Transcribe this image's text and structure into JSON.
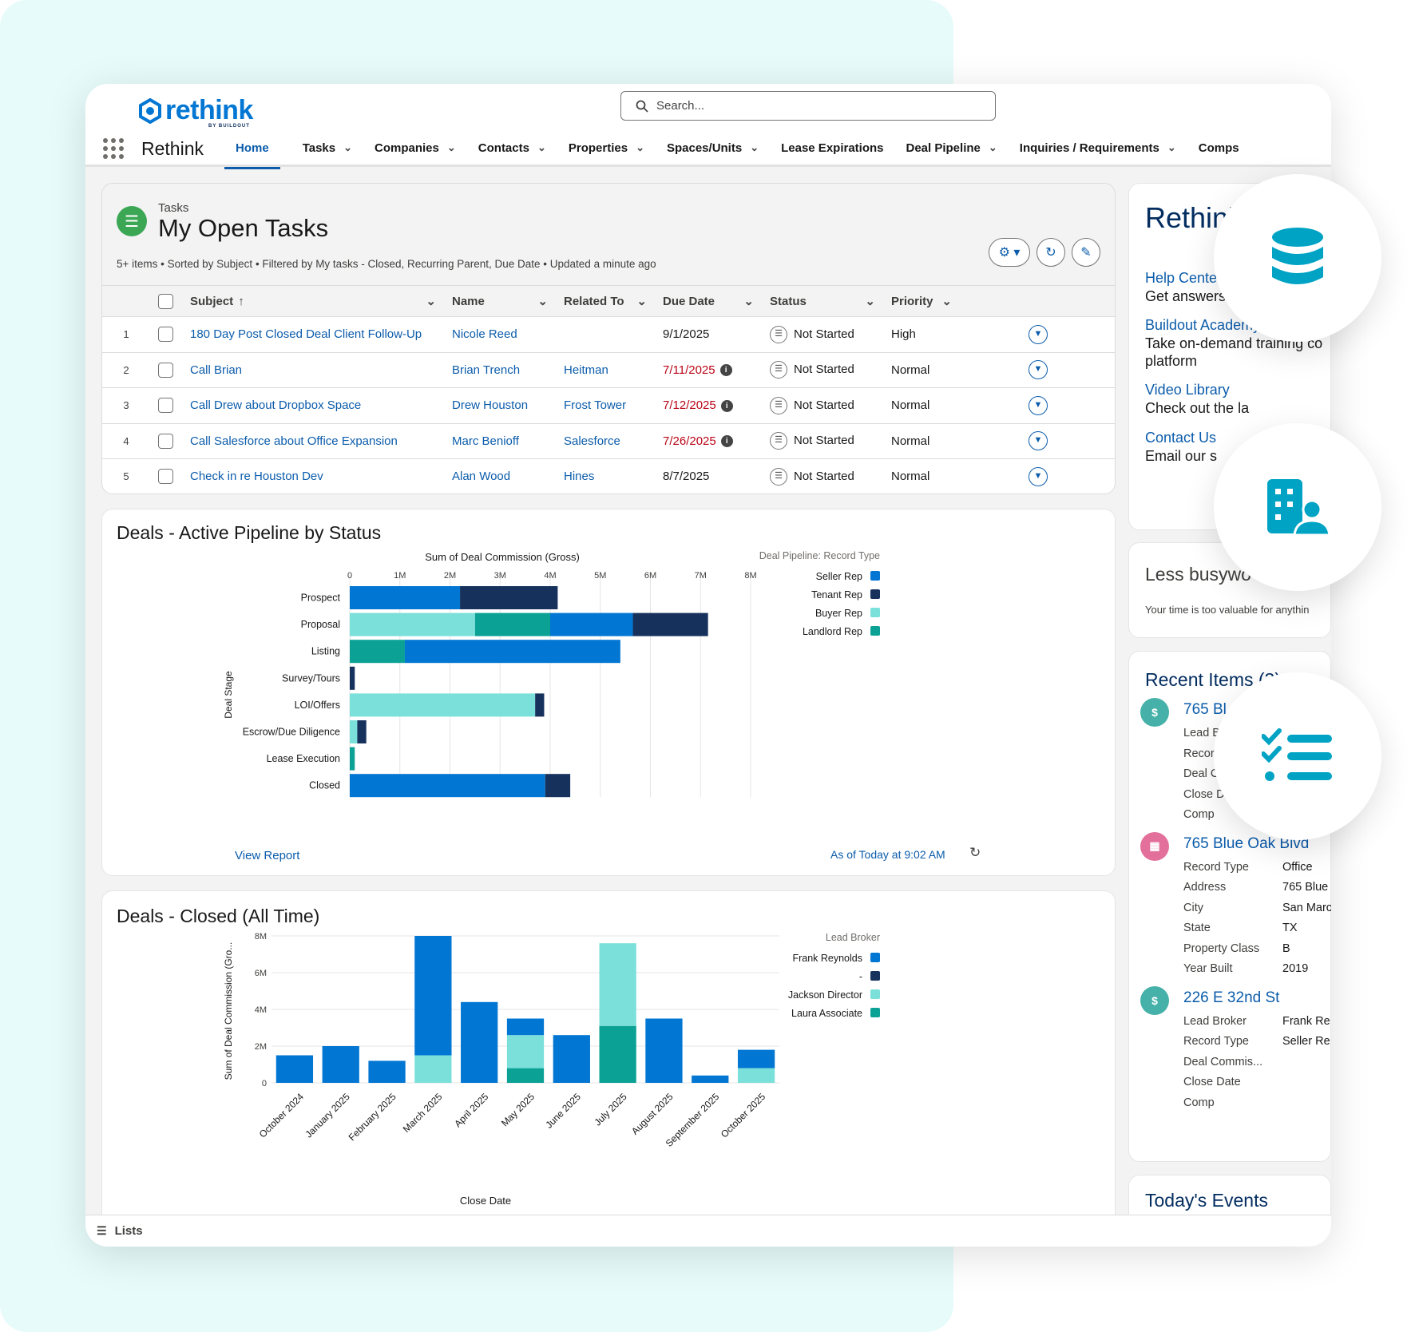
{
  "app": {
    "logo": "rethink",
    "logo_sub": "BY BUILDOUT",
    "name": "Rethink",
    "search_placeholder": "Search..."
  },
  "nav": [
    {
      "label": "Home",
      "active": true,
      "dropdown": false
    },
    {
      "label": "Tasks",
      "dropdown": true
    },
    {
      "label": "Companies",
      "dropdown": true
    },
    {
      "label": "Contacts",
      "dropdown": true
    },
    {
      "label": "Properties",
      "dropdown": true
    },
    {
      "label": "Spaces/Units",
      "dropdown": true
    },
    {
      "label": "Lease Expirations",
      "dropdown": false
    },
    {
      "label": "Deal Pipeline",
      "dropdown": true
    },
    {
      "label": "Inquiries / Requirements",
      "dropdown": true
    },
    {
      "label": "Comps",
      "dropdown": false
    }
  ],
  "tasks": {
    "kicker": "Tasks",
    "title": "My Open Tasks",
    "meta": "5+ items • Sorted by Subject • Filtered by My tasks - Closed, Recurring Parent, Due Date • Updated a minute ago",
    "columns": [
      "Subject",
      "Name",
      "Related To",
      "Due Date",
      "Status",
      "Priority"
    ],
    "rows": [
      {
        "num": "1",
        "subject": "180 Day Post Closed Deal Client Follow-Up",
        "name": "Nicole Reed",
        "related": "",
        "due": "9/1/2025",
        "overdue": false,
        "status": "Not Started",
        "priority": "High"
      },
      {
        "num": "2",
        "subject": "Call Brian",
        "name": "Brian Trench",
        "related": "Heitman",
        "due": "7/11/2025",
        "overdue": true,
        "status": "Not Started",
        "priority": "Normal"
      },
      {
        "num": "3",
        "subject": "Call Drew about Dropbox Space",
        "name": "Drew Houston",
        "related": "Frost Tower",
        "due": "7/12/2025",
        "overdue": true,
        "status": "Not Started",
        "priority": "Normal"
      },
      {
        "num": "4",
        "subject": "Call Salesforce about Office Expansion",
        "name": "Marc Benioff",
        "related": "Salesforce",
        "due": "7/26/2025",
        "overdue": true,
        "status": "Not Started",
        "priority": "Normal"
      },
      {
        "num": "5",
        "subject": "Check in re Houston Dev",
        "name": "Alan Wood",
        "related": "Hines",
        "due": "8/7/2025",
        "overdue": false,
        "status": "Not Started",
        "priority": "Normal"
      }
    ]
  },
  "pipeline_card": {
    "title": "Deals - Active Pipeline by Status",
    "view_report": "View Report",
    "as_of": "As of Today at 9:02 AM"
  },
  "closed_card": {
    "title": "Deals - Closed (All Time)"
  },
  "colors": {
    "Seller Rep": "#0176d3",
    "Tenant Rep": "#16325c",
    "Buyer Rep": "#7ae0d9",
    "Landlord Rep": "#0ba295",
    "Frank Reynolds": "#0176d3",
    "-": "#16325c",
    "Jackson Director": "#7ae0d9",
    "Laura Associate": "#0ba295"
  },
  "chart_data": [
    {
      "type": "bar",
      "orientation": "horizontal",
      "stacked": true,
      "title": "Sum of Deal Commission (Gross)",
      "ylabel": "Deal Stage",
      "legend_title": "Deal Pipeline: Record Type",
      "legend_position": "right",
      "xlim": [
        0,
        8000000
      ],
      "xticks": [
        "0",
        "1M",
        "2M",
        "3M",
        "4M",
        "5M",
        "6M",
        "7M",
        "8M"
      ],
      "categories": [
        "Prospect",
        "Proposal",
        "Listing",
        "Survey/Tours",
        "LOI/Offers",
        "Escrow/Due Diligence",
        "Lease Execution",
        "Closed"
      ],
      "series": [
        {
          "name": "Buyer Rep",
          "values": [
            0,
            2500000,
            0,
            0,
            3700000,
            150000,
            0,
            0
          ]
        },
        {
          "name": "Landlord Rep",
          "values": [
            0,
            1500000,
            1100000,
            0,
            0,
            0,
            100000,
            0
          ]
        },
        {
          "name": "Seller Rep",
          "values": [
            2200000,
            1650000,
            4300000,
            0,
            0,
            0,
            0,
            3900000
          ]
        },
        {
          "name": "Tenant Rep",
          "values": [
            1950000,
            1500000,
            0,
            100000,
            180000,
            180000,
            0,
            500000
          ]
        }
      ],
      "legend_order": [
        "Seller Rep",
        "Tenant Rep",
        "Buyer Rep",
        "Landlord Rep"
      ]
    },
    {
      "type": "bar",
      "stacked": true,
      "xlabel": "Close Date",
      "ylabel": "Sum of Deal Commission (Gro...",
      "legend_title": "Lead Broker",
      "legend_position": "right",
      "ylim": [
        0,
        8000000
      ],
      "yticks": [
        "0",
        "2M",
        "4M",
        "6M",
        "8M"
      ],
      "categories": [
        "October 2024",
        "January 2025",
        "February 2025",
        "March 2025",
        "April 2025",
        "May 2025",
        "June 2025",
        "July 2025",
        "August 2025",
        "September 2025",
        "October 2025"
      ],
      "series": [
        {
          "name": "Laura Associate",
          "values": [
            0,
            0,
            0,
            0,
            0,
            800000,
            0,
            3100000,
            0,
            0,
            0
          ]
        },
        {
          "name": "Jackson Director",
          "values": [
            0,
            0,
            0,
            1500000,
            0,
            1800000,
            0,
            4500000,
            0,
            0,
            800000
          ]
        },
        {
          "name": "Frank Reynolds",
          "values": [
            1500000,
            2000000,
            1200000,
            6500000,
            4400000,
            900000,
            2600000,
            0,
            3500000,
            400000,
            1000000
          ]
        }
      ],
      "legend_order": [
        "Frank Reynolds",
        "-",
        "Jackson Director",
        "Laura Associate"
      ]
    }
  ],
  "side": {
    "title": "Rethink",
    "help_link": "Help Center",
    "help_text": "Get answers t",
    "academy_link": "Buildout Academy",
    "academy_text1": "Take on-demand training co",
    "academy_text2": "platform",
    "video_link": "Video Library",
    "video_text": "Check out the la",
    "contact_link": "Contact Us",
    "contact_text": "Email our s",
    "busy_title": "Less busywo",
    "busy_sub": "Your time is too valuable for anythin",
    "recent_title": "Recent Items (3)",
    "recent": [
      {
        "title": "765 Bl",
        "kind": "deal",
        "fields": [
          {
            "label": "Lead B",
            "value": ""
          },
          {
            "label": "Recor",
            "value": ""
          },
          {
            "label": "Deal C",
            "value": ""
          },
          {
            "label": "Close D",
            "value": ""
          },
          {
            "label": "Comp",
            "value": ""
          }
        ]
      },
      {
        "title": "765 Blue Oak Blvd",
        "kind": "property",
        "fields": [
          {
            "label": "Record Type",
            "value": "Office"
          },
          {
            "label": "Address",
            "value": "765 Blue"
          },
          {
            "label": "City",
            "value": "San Marc"
          },
          {
            "label": "State",
            "value": "TX"
          },
          {
            "label": "Property Class",
            "value": "B"
          },
          {
            "label": "Year Built",
            "value": "2019"
          }
        ]
      },
      {
        "title": "226 E 32nd St",
        "kind": "deal",
        "fields": [
          {
            "label": "Lead Broker",
            "value": "Frank Re"
          },
          {
            "label": "Record Type",
            "value": "Seller Re"
          },
          {
            "label": "Deal Commis...",
            "value": ""
          },
          {
            "label": "Close Date",
            "value": ""
          },
          {
            "label": "Comp",
            "value": ""
          }
        ]
      }
    ],
    "events_title": "Today's Events"
  },
  "footer": {
    "label": "Lists"
  }
}
